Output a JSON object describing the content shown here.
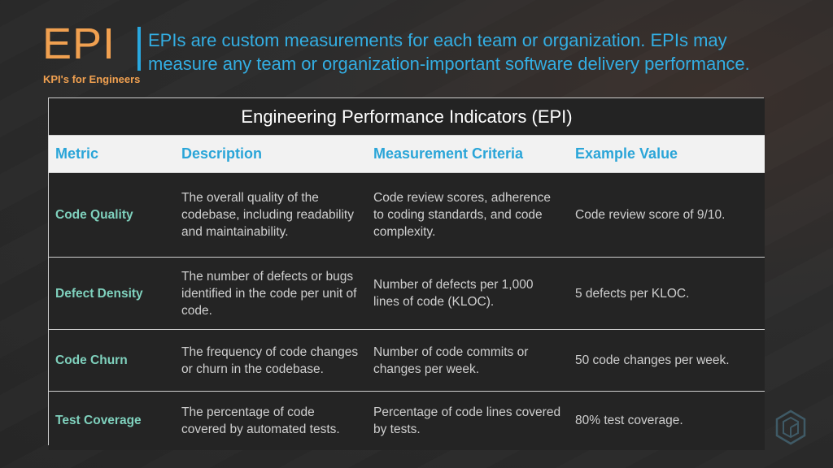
{
  "header": {
    "logo": "EPI",
    "subtitle": "KPI's for Engineers",
    "tagline_line1": "EPIs are custom measurements for each team or organization. EPIs may",
    "tagline_line2": "measure any team or organization-important software delivery performance."
  },
  "table": {
    "title": "Engineering Performance Indicators (EPI)",
    "columns": [
      "Metric",
      "Description",
      "Measurement Criteria",
      "Example Value"
    ],
    "rows": [
      {
        "metric": "Code Quality",
        "description": "The overall quality of the codebase, including readability and maintainability.",
        "criteria": "Code review scores, adherence to coding standards, and code complexity.",
        "example": "Code review score of 9/10."
      },
      {
        "metric": "Defect Density",
        "description": "The number of defects or bugs identified in the code per unit of code.",
        "criteria": "Number of defects per 1,000 lines of code (KLOC).",
        "example": "5 defects per KLOC."
      },
      {
        "metric": "Code Churn",
        "description": "The frequency of code changes or churn in the codebase.",
        "criteria": "Number of code commits or changes per week.",
        "example": "50 code changes per week."
      },
      {
        "metric": "Test Coverage",
        "description": "The percentage of code covered by automated tests.",
        "criteria": "Percentage of code lines covered by tests.",
        "example": "80% test coverage."
      }
    ]
  },
  "colors": {
    "accent_orange": "#f0a050",
    "accent_blue": "#29a8df",
    "metric_teal": "#7fd1bd"
  },
  "icons": {
    "corner": "hexagon-logo-icon"
  }
}
